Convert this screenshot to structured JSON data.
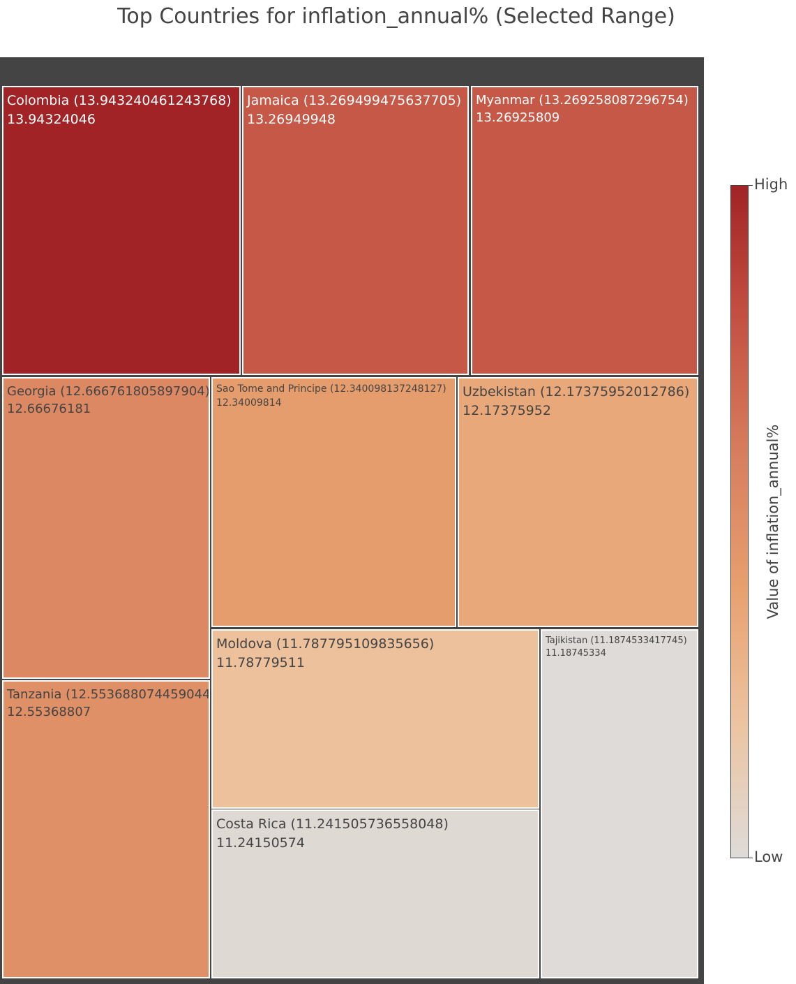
{
  "chart_data": {
    "type": "treemap",
    "title": "Top Countries for inflation_annual% (Selected Range)",
    "colorbar": {
      "title": "Value of inflation_annual%",
      "high_label": "High",
      "low_label": "Low",
      "colors": [
        "#a12326",
        "#c14d40",
        "#d77e5e",
        "#e8a06e",
        "#ecc4a1",
        "#dedbd8"
      ]
    },
    "items": [
      {
        "label": "Colombia (13.943240461243768)",
        "value_text": "13.94324046",
        "value": 13.943240461243768
      },
      {
        "label": "Jamaica (13.269499475637705)",
        "value_text": "13.26949948",
        "value": 13.269499475637705
      },
      {
        "label": "Myanmar (13.269258087296754)",
        "value_text": "13.26925809",
        "value": 13.269258087296754
      },
      {
        "label": "Georgia (12.666761805897904)",
        "value_text": "12.66676181",
        "value": 12.666761805897904
      },
      {
        "label": "Sao Tome and Principe (12.340098137248127)",
        "value_text": "12.34009814",
        "value": 12.340098137248127
      },
      {
        "label": "Uzbekistan (12.17375952012786)",
        "value_text": "12.17375952",
        "value": 12.17375952012786
      },
      {
        "label": "Tanzania (12.553688074459044)",
        "value_text": "12.55368807",
        "value": 12.553688074459044
      },
      {
        "label": "Moldova (11.787795109835656)",
        "value_text": "11.78779511",
        "value": 11.787795109835656
      },
      {
        "label": "Tajikistan (11.1874533417745)",
        "value_text": "11.18745334",
        "value": 11.1874533417745
      },
      {
        "label": "Costa Rica (11.241505736558048)",
        "value_text": "11.24150574",
        "value": 11.241505736558048
      }
    ]
  }
}
